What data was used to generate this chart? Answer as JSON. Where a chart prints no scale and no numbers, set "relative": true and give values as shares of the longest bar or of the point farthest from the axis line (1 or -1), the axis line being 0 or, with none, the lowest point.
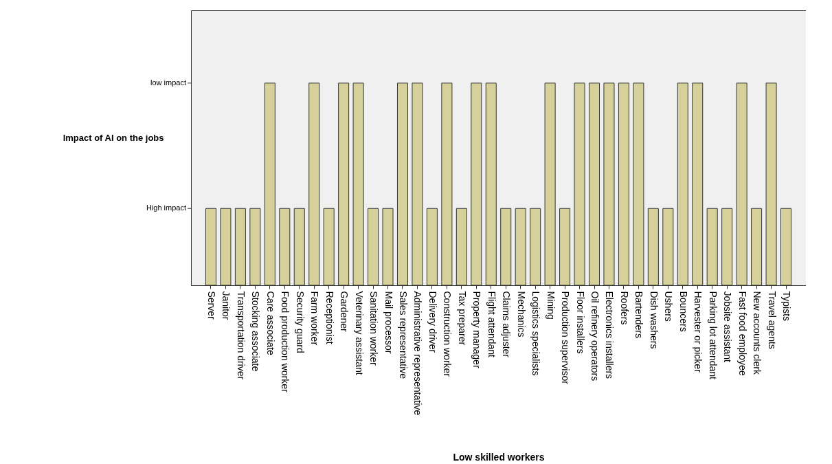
{
  "chart_data": {
    "type": "bar",
    "xlabel": "Low skilled workers",
    "ylabel": "Impact of AI on the jobs",
    "categories": [
      "Server",
      "Janitor",
      "Transportation driver",
      "Stocking associate",
      "Care associate",
      "Food production worker",
      "Security guard",
      "Farm worker",
      "Receptionist",
      "Gardener",
      "Veterinary assistant",
      "Sanitation worker",
      "Mail processor",
      "Sales representative",
      "Administrative representative",
      "Delivery driver",
      "Construction worker",
      "Tax preparer",
      "Property manager",
      "Flight attendant",
      "Claims adjuster",
      "Mechanics",
      "Logistics specialists",
      "Mining",
      "Production supervisor",
      "Floor installers",
      "Oil refinery operators",
      "Electronics installers",
      "Roofers",
      "Bartenders",
      "Dish washers",
      "Ushers",
      "Bouncers",
      "Harvester or picker",
      "Parking lot attendant",
      "Jobsite assistant",
      "Fast food employee",
      "New accounts clerk",
      "Travel agents",
      "Typists"
    ],
    "values": [
      0.38,
      0.38,
      0.38,
      0.38,
      1,
      0.38,
      0.38,
      1,
      0.38,
      1,
      1,
      0.38,
      0.38,
      1,
      1,
      0.38,
      1,
      0.38,
      1,
      1,
      0.38,
      0.38,
      0.38,
      1,
      0.38,
      1,
      1,
      1,
      1,
      1,
      0.38,
      0.38,
      1,
      1,
      0.38,
      0.38,
      1,
      0.38,
      1,
      0.38
    ],
    "relative": true,
    "color": "#d6d19b",
    "annotations": [
      "High impact",
      "low impact"
    ],
    "grid": false
  }
}
